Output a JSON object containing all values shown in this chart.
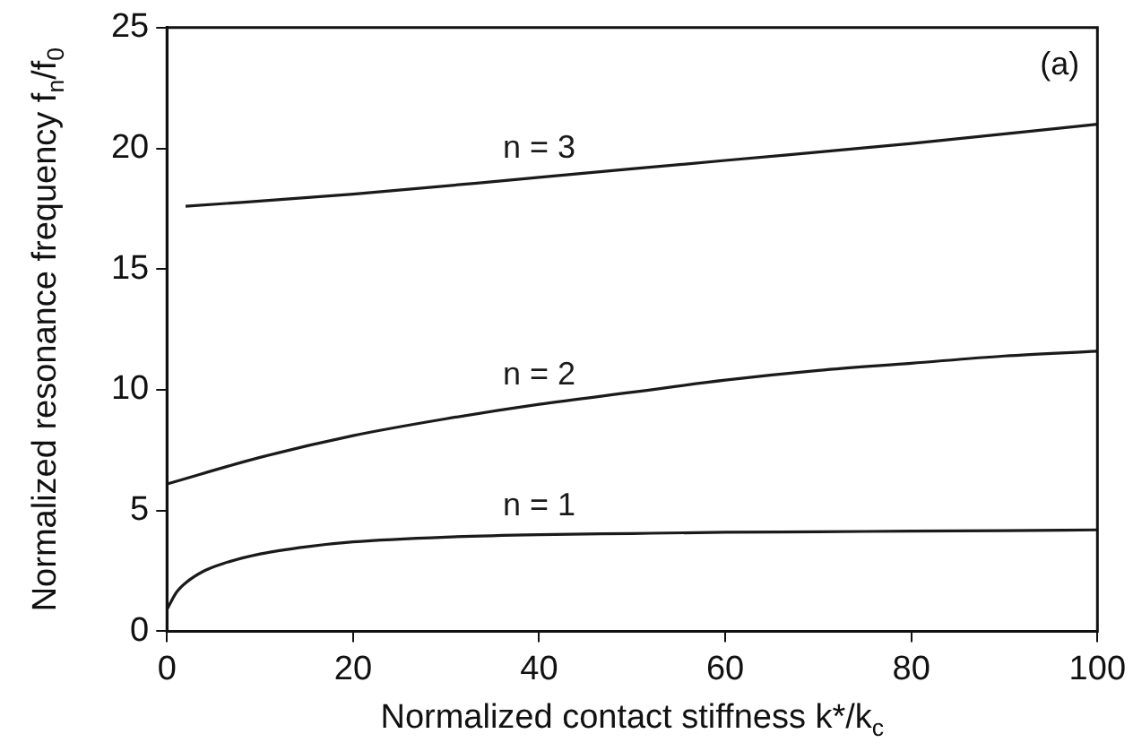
{
  "chart_data": {
    "type": "line",
    "xlabel": "Normalized contact stiffness k*/k$_{c}$",
    "ylabel": "Normalized resonance frequency f$_{n}$/f$_{0}$",
    "xlim": [
      0,
      100
    ],
    "xticks": [
      0,
      20,
      40,
      60,
      80,
      100
    ],
    "ylim": [
      0,
      25
    ],
    "yticks": [
      0,
      5,
      10,
      15,
      20,
      25
    ],
    "grid": false,
    "legend": false,
    "marker": "none",
    "line_style": "solid",
    "series": [
      {
        "name": "n = 1",
        "color": "#1a1a1a",
        "x": [
          0,
          1,
          2,
          4,
          6,
          10,
          15,
          20,
          30,
          40,
          50,
          60,
          70,
          80,
          90,
          100
        ],
        "values": [
          0.9,
          1.6,
          2.0,
          2.5,
          2.8,
          3.2,
          3.5,
          3.7,
          3.9,
          4.0,
          4.05,
          4.1,
          4.12,
          4.15,
          4.17,
          4.2
        ]
      },
      {
        "name": "n = 2",
        "color": "#1a1a1a",
        "x": [
          0,
          10,
          20,
          30,
          40,
          50,
          60,
          70,
          80,
          90,
          100
        ],
        "values": [
          6.1,
          7.2,
          8.1,
          8.8,
          9.4,
          9.9,
          10.4,
          10.8,
          11.1,
          11.4,
          11.6
        ]
      },
      {
        "name": "n = 3",
        "color": "#1a1a1a",
        "x": [
          2,
          20,
          40,
          60,
          80,
          100
        ],
        "values": [
          17.6,
          18.1,
          18.8,
          19.5,
          20.2,
          21.0
        ]
      }
    ],
    "annotations": [
      "(a)"
    ]
  }
}
